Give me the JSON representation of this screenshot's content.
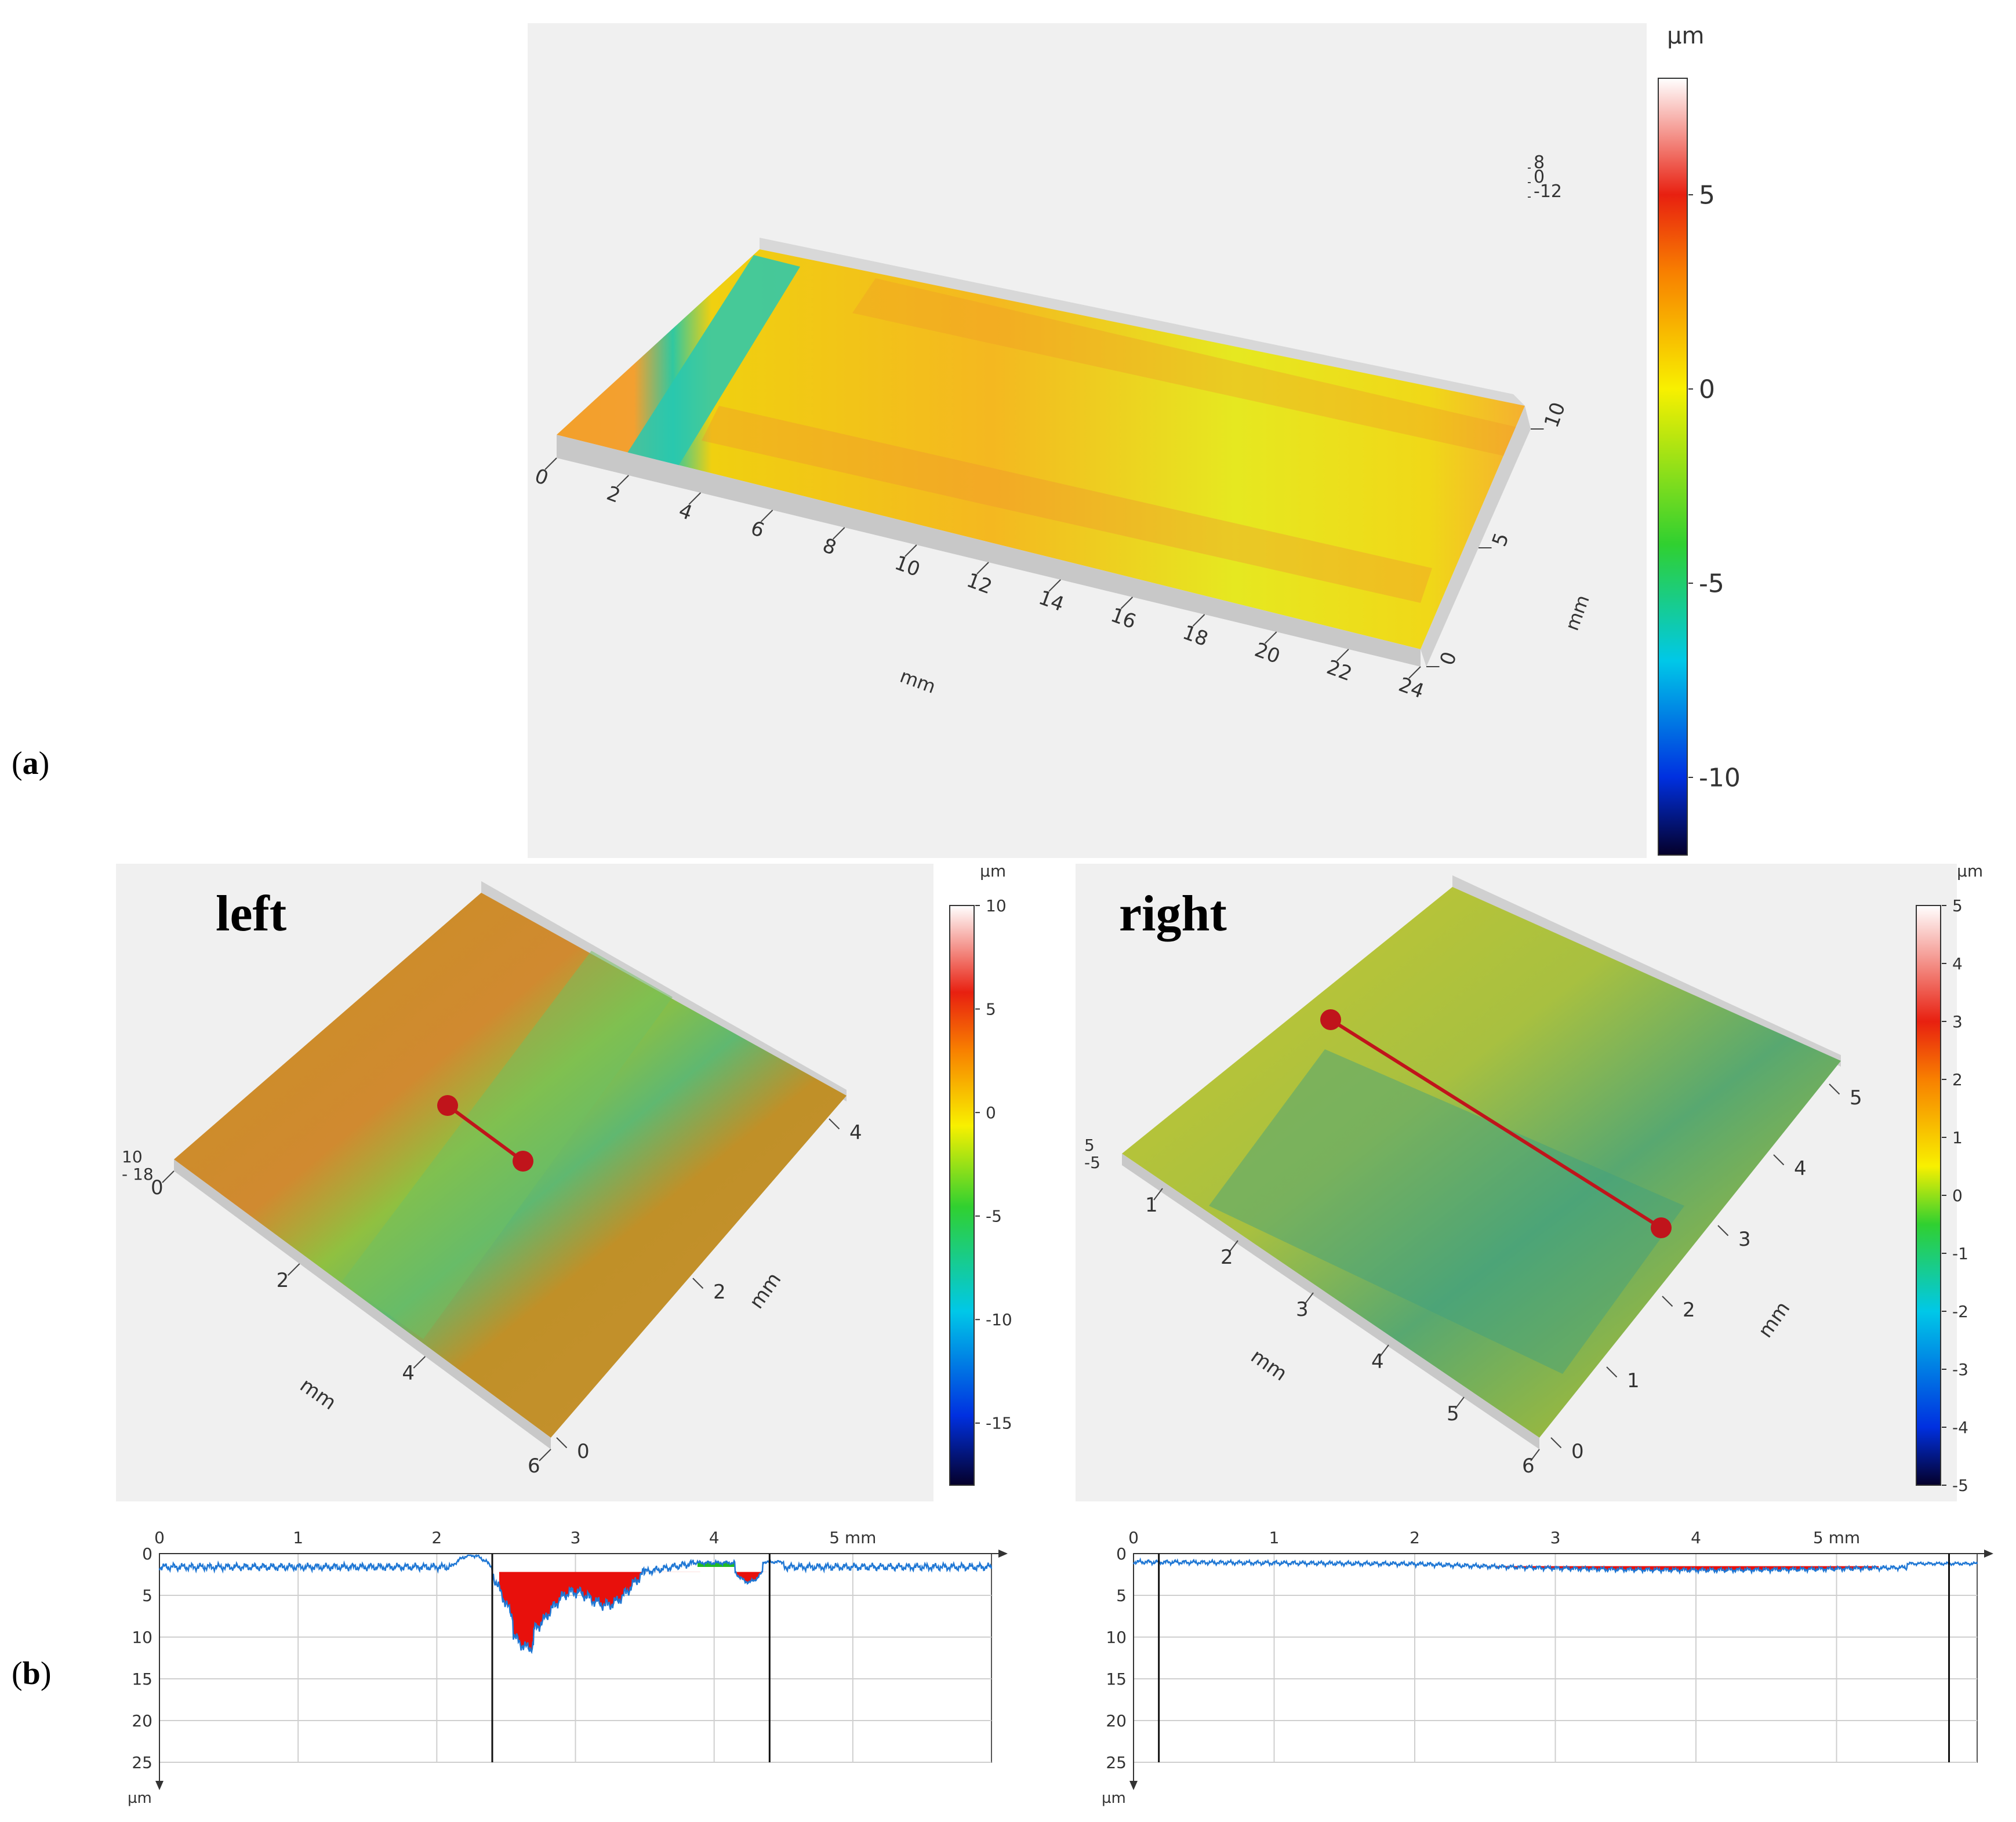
{
  "figure_labels": {
    "a": "a",
    "b": "b"
  },
  "panel_a": {
    "colorbar": {
      "unit": "µm",
      "ticks": [
        "5",
        "0",
        "-5",
        "-10"
      ],
      "min": -12,
      "max": 8
    },
    "x_axis": {
      "label": "mm",
      "ticks": [
        "0",
        "2",
        "4",
        "6",
        "8",
        "10",
        "12",
        "14",
        "16",
        "18",
        "20",
        "22",
        "24"
      ]
    },
    "y_axis": {
      "label": "mm",
      "ticks": [
        "0",
        "5",
        "10"
      ]
    },
    "z_axis": {
      "ticks": [
        "8",
        "0",
        "-12"
      ]
    }
  },
  "panel_left": {
    "title": "left",
    "colorbar": {
      "unit": "µm",
      "ticks": [
        "10",
        "5",
        "0",
        "-5",
        "-10",
        "-15"
      ],
      "min": -18,
      "max": 10
    },
    "x_axis": {
      "label": "mm",
      "ticks": [
        "0",
        "2",
        "4",
        "6"
      ]
    },
    "y_axis": {
      "label": "mm",
      "ticks": [
        "0",
        "2",
        "4"
      ]
    },
    "z_axis": {
      "ticks": [
        "10",
        "- 18"
      ]
    }
  },
  "panel_right": {
    "title": "right",
    "colorbar": {
      "unit": "µm",
      "ticks": [
        "5",
        "4",
        "3",
        "2",
        "1",
        "0",
        "-1",
        "-2",
        "-3",
        "-4",
        "-5"
      ],
      "min": -5,
      "max": 5
    },
    "x_axis": {
      "label": "mm",
      "ticks": [
        "1",
        "2",
        "3",
        "4",
        "5",
        "6"
      ]
    },
    "y_axis": {
      "label": "mm",
      "ticks": [
        "0",
        "1",
        "2",
        "3",
        "4",
        "5"
      ]
    },
    "z_axis": {
      "ticks": [
        "5",
        "-5"
      ]
    }
  },
  "profile_left": {
    "x_ticks": [
      "0",
      "1",
      "2",
      "3",
      "4",
      "5 mm"
    ],
    "y_ticks": [
      "0",
      "5",
      "10",
      "15",
      "20",
      "25"
    ],
    "y_unit": "µm",
    "cursor_x": [
      2.4,
      4.4
    ]
  },
  "profile_right": {
    "x_ticks": [
      "0",
      "1",
      "2",
      "3",
      "4",
      "5 mm"
    ],
    "y_ticks": [
      "0",
      "5",
      "10",
      "15",
      "20",
      "25"
    ],
    "y_unit": "µm",
    "cursor_x": [
      0.18,
      5.8
    ]
  },
  "colors": {
    "profile_line": "#1f77d4",
    "fill_valley": "#e8100c",
    "fill_peak": "#22bb22",
    "marker": "#c0141b"
  }
}
